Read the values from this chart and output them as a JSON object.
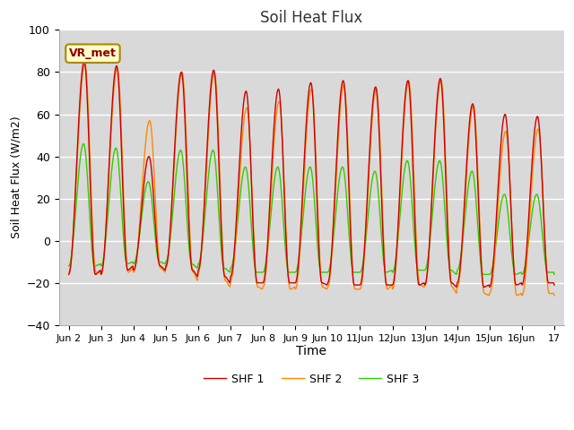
{
  "title": "Soil Heat Flux",
  "xlabel": "Time",
  "ylabel": "Soil Heat Flux (W/m2)",
  "ylim": [
    -40,
    100
  ],
  "yticks": [
    -40,
    -20,
    0,
    20,
    40,
    60,
    80,
    100
  ],
  "fig_bg_color": "#ffffff",
  "plot_bg_color": "#d9d9d9",
  "grid_color": "#ffffff",
  "shf1_color": "#cc0000",
  "shf2_color": "#ff8800",
  "shf3_color": "#33cc00",
  "legend_label1": "SHF 1",
  "legend_label2": "SHF 2",
  "legend_label3": "SHF 3",
  "annotation_text": "VR_met",
  "xtick_labels": [
    "Jun 2",
    "Jun 3",
    "Jun 4",
    "Jun 5",
    "Jun 6",
    "Jun 7",
    "Jun 8",
    "Jun 9",
    "Jun 10",
    "11Jun",
    "12Jun",
    "13Jun",
    "14Jun",
    "15Jun",
    "16Jun",
    "17"
  ],
  "shf1_peaks": [
    85,
    83,
    40,
    80,
    81,
    71,
    72,
    75,
    76,
    73,
    76,
    77,
    65,
    60,
    59
  ],
  "shf2_peaks": [
    84,
    82,
    57,
    80,
    80,
    63,
    66,
    72,
    74,
    72,
    76,
    76,
    64,
    52,
    53
  ],
  "shf3_peaks": [
    46,
    44,
    28,
    43,
    43,
    35,
    35,
    35,
    35,
    33,
    38,
    38,
    33,
    22,
    22
  ],
  "shf1_troughs": [
    -16,
    -14,
    -12,
    -14,
    -17,
    -20,
    -20,
    -20,
    -21,
    -21,
    -21,
    -20,
    -22,
    -21,
    -20
  ],
  "shf2_troughs": [
    -15,
    -15,
    -13,
    -15,
    -19,
    -22,
    -23,
    -22,
    -23,
    -23,
    -21,
    -22,
    -25,
    -26,
    -25
  ],
  "shf3_troughs": [
    -12,
    -11,
    -10,
    -11,
    -13,
    -15,
    -15,
    -15,
    -15,
    -15,
    -14,
    -14,
    -16,
    -16,
    -15
  ]
}
